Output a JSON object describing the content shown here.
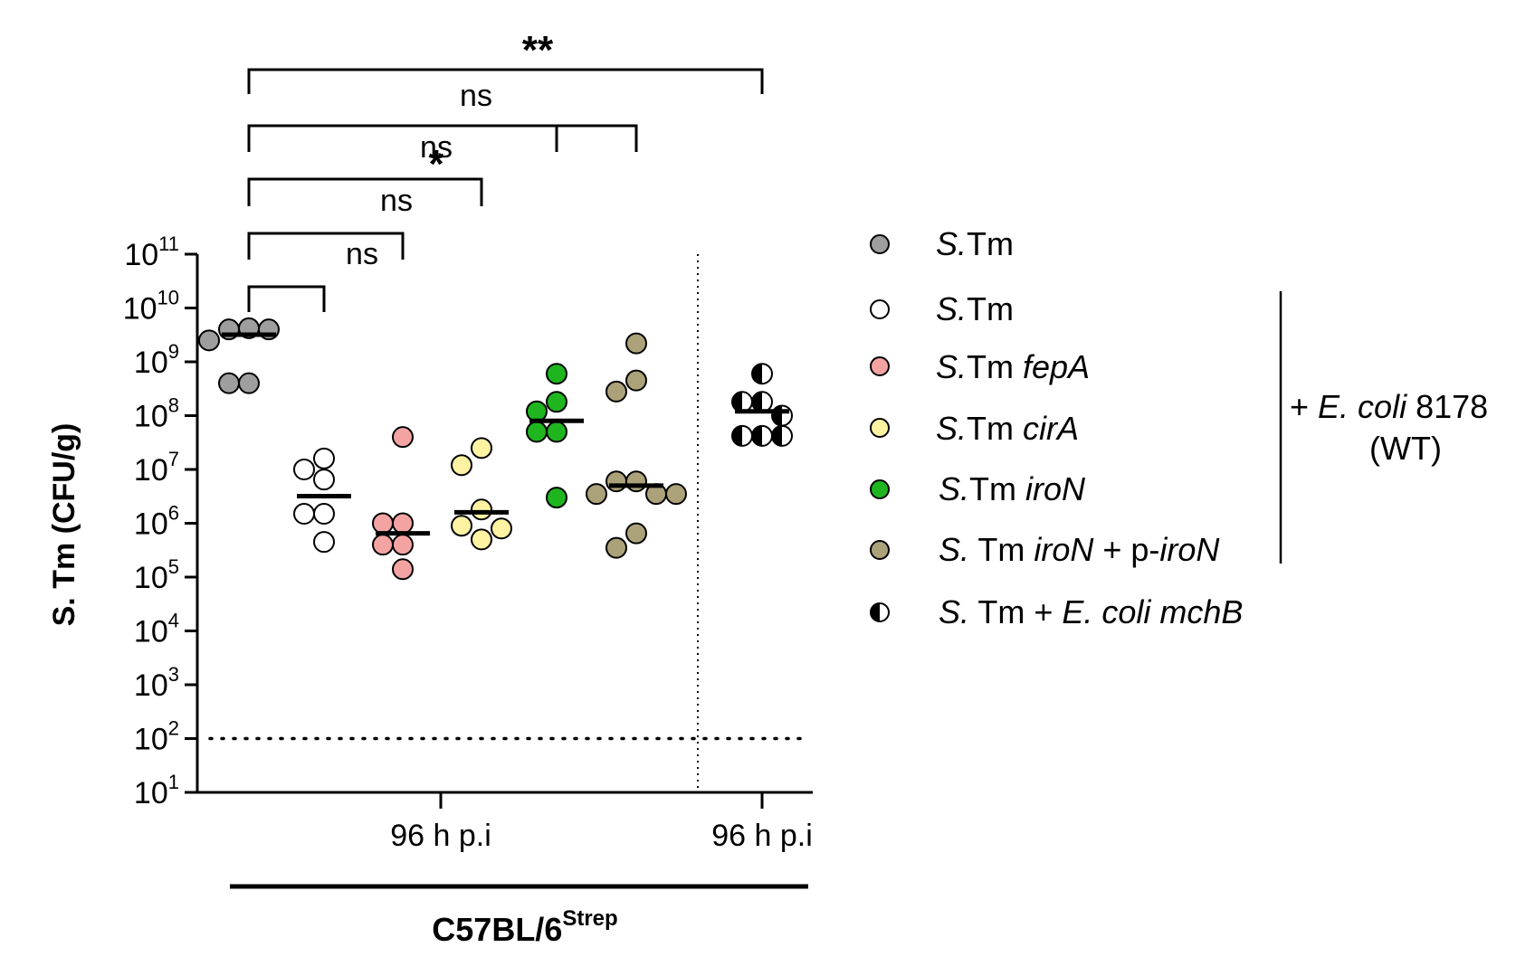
{
  "chart_data": {
    "type": "scatter",
    "y_axis": {
      "label": "S. Tm (CFU/g)",
      "scale": "log10",
      "range_exponents": [
        1,
        11
      ],
      "ticks": [
        {
          "base": "10",
          "exp": "11"
        },
        {
          "base": "10",
          "exp": "10"
        },
        {
          "base": "10",
          "exp": "9"
        },
        {
          "base": "10",
          "exp": "8"
        },
        {
          "base": "10",
          "exp": "7"
        },
        {
          "base": "10",
          "exp": "6"
        },
        {
          "base": "10",
          "exp": "5"
        },
        {
          "base": "10",
          "exp": "4"
        },
        {
          "base": "10",
          "exp": "3"
        },
        {
          "base": "10",
          "exp": "2"
        },
        {
          "base": "10",
          "exp": "1"
        }
      ],
      "detection_limit": 100
    },
    "x_ticks": [
      "96 h p.i",
      "96 h p.i"
    ],
    "group_label": {
      "main": "C57BL/6",
      "sup": "Strep"
    },
    "series": [
      {
        "legend_key": "stm",
        "color": "#9e9e9e",
        "median": 3200000000.0,
        "values": [
          4000000000.0,
          4200000000.0,
          4000000000.0,
          2500000000.0,
          400000000.0,
          400000000.0
        ]
      },
      {
        "legend_key": "stm_ecoli",
        "color": "#ffffff",
        "median": 3200000.0,
        "values": [
          16000000.0,
          10000000.0,
          1500000.0,
          1500000.0,
          6500000.0,
          450000.0
        ]
      },
      {
        "legend_key": "fepA",
        "color": "#f4a3a3",
        "median": 650000.0,
        "values": [
          40000000.0,
          1000000.0,
          1000000.0,
          400000.0,
          400000.0,
          140000.0
        ]
      },
      {
        "legend_key": "cirA",
        "color": "#fff3a3",
        "median": 1600000.0,
        "values": [
          25000000.0,
          12000000.0,
          1800000.0,
          900000.0,
          800000.0,
          500000.0
        ]
      },
      {
        "legend_key": "iroN",
        "color": "#1fb51f",
        "median": 80000000.0,
        "values": [
          600000000.0,
          180000000.0,
          120000000.0,
          50000000.0,
          50000000.0,
          3000000.0
        ]
      },
      {
        "legend_key": "iroN_p",
        "color": "#aca27a",
        "median": 5000000.0,
        "values": [
          2200000000.0,
          450000000.0,
          280000000.0,
          6000000.0,
          6000000.0,
          3500000.0,
          3500000.0,
          3500000.0,
          650000.0,
          350000.0
        ]
      },
      {
        "legend_key": "mchB",
        "color": "half-black",
        "median": 120000000.0,
        "values": [
          600000000.0,
          180000000.0,
          180000000.0,
          100000000.0,
          42000000.0,
          42000000.0,
          42000000.0
        ]
      }
    ],
    "comparisons": [
      {
        "from": 1,
        "to": 2,
        "label": "ns"
      },
      {
        "from": 1,
        "to": 3,
        "label": "ns"
      },
      {
        "from": 1,
        "to": 4,
        "label": "ns"
      },
      {
        "from": 1,
        "to": 5,
        "label": "*"
      },
      {
        "from": 1,
        "to": 6,
        "label": "ns"
      },
      {
        "from": 1,
        "to": 7,
        "label": "**"
      }
    ],
    "legend": [
      {
        "key": "stm",
        "parts": [
          {
            "t": "S.",
            "i": true
          },
          {
            "t": "Tm",
            "i": false
          }
        ],
        "color": "#9e9e9e"
      },
      {
        "key": "stm_ecoli",
        "parts": [
          {
            "t": "S.",
            "i": true
          },
          {
            "t": "Tm",
            "i": false
          }
        ],
        "color": "#ffffff"
      },
      {
        "key": "fepA",
        "parts": [
          {
            "t": "S.",
            "i": true
          },
          {
            "t": "Tm ",
            "i": false
          },
          {
            "t": "fepA",
            "i": true
          }
        ],
        "color": "#f4a3a3"
      },
      {
        "key": "cirA",
        "parts": [
          {
            "t": "S.",
            "i": true
          },
          {
            "t": "Tm ",
            "i": false
          },
          {
            "t": "cirA",
            "i": true
          }
        ],
        "color": "#fff3a3"
      },
      {
        "key": "iroN",
        "parts": [
          {
            "t": "S.",
            "i": true
          },
          {
            "t": "Tm ",
            "i": false
          },
          {
            "t": "iroN",
            "i": true
          }
        ],
        "color": "#1fb51f"
      },
      {
        "key": "iroN_p",
        "parts": [
          {
            "t": "S.",
            "i": true
          },
          {
            "t": " Tm ",
            "i": false
          },
          {
            "t": "iroN",
            "i": true
          },
          {
            "t": " + p-",
            "i": false
          },
          {
            "t": "iroN",
            "i": true
          }
        ],
        "color": "#aca27a"
      },
      {
        "key": "mchB",
        "parts": [
          {
            "t": "S.",
            "i": true
          },
          {
            "t": " Tm + ",
            "i": false
          },
          {
            "t": "E. coli mchB",
            "i": true
          }
        ],
        "color": "half-black"
      }
    ],
    "side_label": {
      "line1": [
        {
          "t": "+ ",
          "i": false
        },
        {
          "t": "E. coli",
          "i": true
        },
        {
          "t": " 8178",
          "i": false
        }
      ],
      "line2": "(WT)"
    }
  }
}
